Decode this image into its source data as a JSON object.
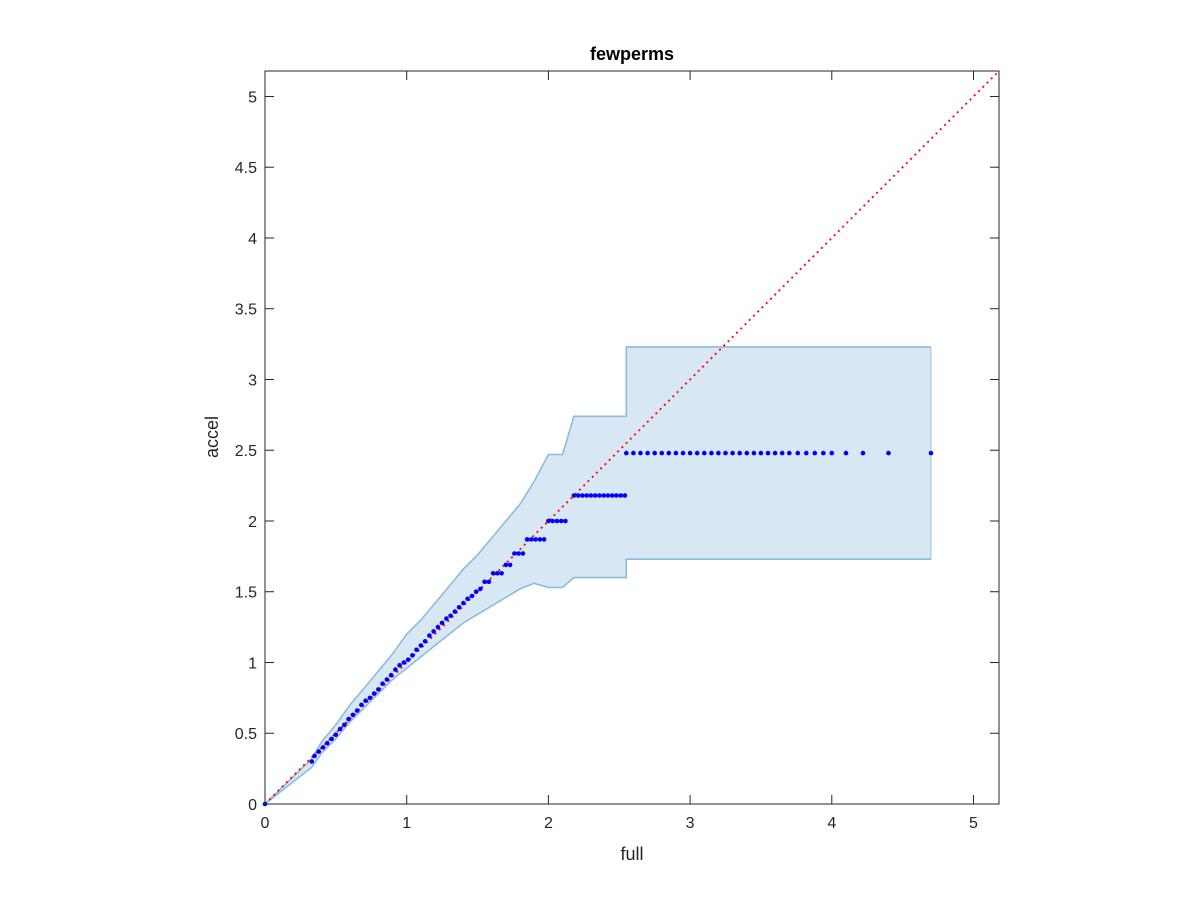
{
  "chart_data": {
    "type": "scatter",
    "title": "fewperms",
    "xlabel": "full",
    "ylabel": "accel",
    "xlim": [
      0,
      5.18
    ],
    "ylim": [
      0,
      5.18
    ],
    "grid": false,
    "x_ticks": [
      0,
      1,
      2,
      3,
      4,
      5
    ],
    "x_tick_labels": [
      "0",
      "1",
      "2",
      "3",
      "4",
      "5"
    ],
    "y_ticks": [
      0,
      0.5,
      1,
      1.5,
      2,
      2.5,
      3,
      3.5,
      4,
      4.5,
      5
    ],
    "y_tick_labels": [
      "0",
      "0.5",
      "1",
      "1.5",
      "2",
      "2.5",
      "3",
      "3.5",
      "4",
      "4.5",
      "5"
    ],
    "colors": {
      "points": "#0000ff",
      "reference_line": "#ff0000",
      "band_fill": "#d7e7f3",
      "band_edge": "#8cbcda",
      "axes": "#262626"
    },
    "reference_line": {
      "from": [
        0,
        0
      ],
      "to": [
        5.18,
        5.18
      ],
      "style": "dotted"
    },
    "confidence_band": {
      "x": [
        0,
        0.33,
        0.4,
        0.5,
        0.6,
        0.7,
        0.8,
        0.9,
        1.0,
        1.1,
        1.2,
        1.3,
        1.4,
        1.5,
        1.6,
        1.7,
        1.8,
        1.9,
        2.0,
        2.1,
        2.18,
        2.3,
        2.55,
        2.55,
        4.7
      ],
      "upper": [
        0,
        0.32,
        0.44,
        0.56,
        0.7,
        0.82,
        0.94,
        1.06,
        1.2,
        1.3,
        1.42,
        1.54,
        1.66,
        1.76,
        1.88,
        2.0,
        2.12,
        2.28,
        2.47,
        2.47,
        2.74,
        2.74,
        2.74,
        3.23,
        3.23
      ],
      "lower": [
        0,
        0.26,
        0.36,
        0.46,
        0.58,
        0.68,
        0.78,
        0.88,
        0.96,
        1.04,
        1.12,
        1.2,
        1.28,
        1.34,
        1.4,
        1.46,
        1.52,
        1.56,
        1.53,
        1.53,
        1.6,
        1.6,
        1.6,
        1.73,
        1.73
      ]
    },
    "series": [
      {
        "x": [
          0,
          0.33,
          0.35,
          0.38,
          0.41,
          0.44,
          0.47,
          0.5,
          0.53,
          0.56,
          0.59,
          0.62,
          0.65,
          0.68,
          0.71,
          0.74,
          0.77,
          0.8,
          0.83,
          0.86,
          0.89,
          0.92,
          0.95,
          0.98,
          1.01,
          1.04,
          1.07,
          1.1,
          1.13,
          1.16,
          1.19,
          1.22,
          1.25,
          1.28,
          1.31,
          1.34,
          1.37,
          1.4,
          1.43,
          1.46,
          1.49,
          1.52,
          1.55,
          1.58,
          1.61,
          1.64,
          1.67,
          1.7,
          1.73,
          1.76,
          1.79,
          1.82,
          1.85,
          1.88,
          1.91,
          1.94,
          1.97,
          2.0,
          2.03,
          2.06,
          2.09,
          2.12,
          2.18,
          2.21,
          2.24,
          2.27,
          2.3,
          2.33,
          2.36,
          2.39,
          2.42,
          2.45,
          2.48,
          2.51,
          2.54,
          2.55,
          2.6,
          2.65,
          2.7,
          2.75,
          2.8,
          2.85,
          2.9,
          2.95,
          3.0,
          3.05,
          3.1,
          3.15,
          3.2,
          3.25,
          3.3,
          3.35,
          3.4,
          3.45,
          3.5,
          3.55,
          3.6,
          3.65,
          3.7,
          3.76,
          3.82,
          3.88,
          3.94,
          4.0,
          4.1,
          4.22,
          4.4,
          4.7
        ],
        "y": [
          0,
          0.3,
          0.34,
          0.37,
          0.4,
          0.43,
          0.46,
          0.49,
          0.53,
          0.56,
          0.6,
          0.63,
          0.66,
          0.7,
          0.73,
          0.75,
          0.78,
          0.81,
          0.85,
          0.88,
          0.91,
          0.95,
          0.98,
          1.0,
          1.02,
          1.05,
          1.09,
          1.12,
          1.15,
          1.19,
          1.22,
          1.25,
          1.28,
          1.31,
          1.33,
          1.36,
          1.39,
          1.42,
          1.45,
          1.47,
          1.5,
          1.52,
          1.57,
          1.57,
          1.63,
          1.63,
          1.63,
          1.69,
          1.69,
          1.77,
          1.77,
          1.77,
          1.87,
          1.87,
          1.87,
          1.87,
          1.87,
          2.0,
          2.0,
          2.0,
          2.0,
          2.0,
          2.18,
          2.18,
          2.18,
          2.18,
          2.18,
          2.18,
          2.18,
          2.18,
          2.18,
          2.18,
          2.18,
          2.18,
          2.18,
          2.48,
          2.48,
          2.48,
          2.48,
          2.48,
          2.48,
          2.48,
          2.48,
          2.48,
          2.48,
          2.48,
          2.48,
          2.48,
          2.48,
          2.48,
          2.48,
          2.48,
          2.48,
          2.48,
          2.48,
          2.48,
          2.48,
          2.48,
          2.48,
          2.48,
          2.48,
          2.48,
          2.48,
          2.48,
          2.48,
          2.48,
          2.48,
          2.48
        ]
      }
    ]
  }
}
